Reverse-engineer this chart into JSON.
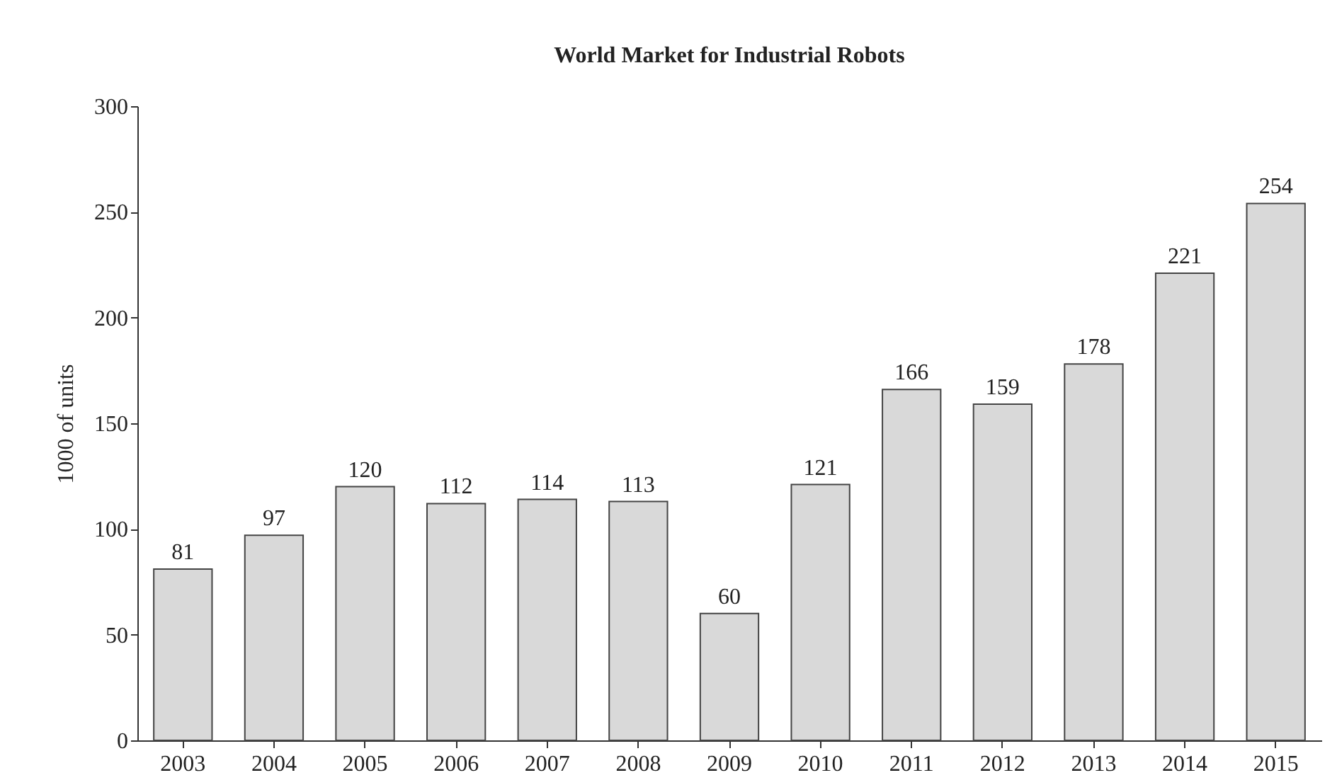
{
  "chart_data": {
    "type": "bar",
    "title": "World Market for Industrial Robots",
    "ylabel": "1000 of units",
    "categories": [
      "2003",
      "2004",
      "2005",
      "2006",
      "2007",
      "2008",
      "2009",
      "2010",
      "2011",
      "2012",
      "2013",
      "2014",
      "2015"
    ],
    "values": [
      81,
      97,
      120,
      112,
      114,
      113,
      60,
      121,
      166,
      159,
      178,
      221,
      254
    ],
    "color": "#d9d9d9",
    "ylim": [
      0,
      300
    ],
    "yticks": [
      0,
      50,
      100,
      150,
      200,
      250,
      300
    ],
    "data_labels": true,
    "grid": false
  }
}
